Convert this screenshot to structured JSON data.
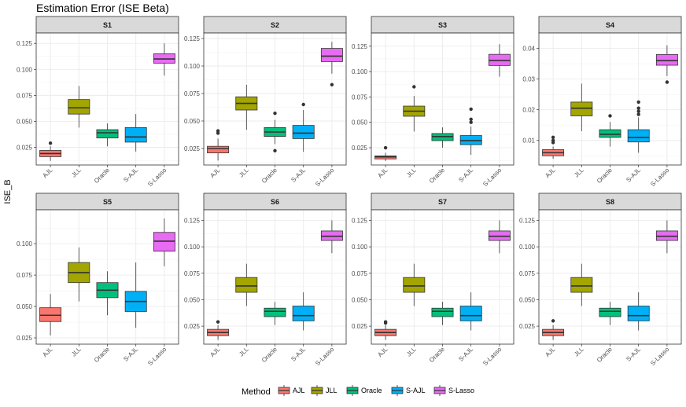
{
  "chart_data": {
    "type": "boxplot",
    "title": "Estimation Error (ISE Beta)",
    "ylabel": "ISE_B",
    "categories": [
      "AJL",
      "JLL",
      "Oracle",
      "S-AJL",
      "S-Lasso"
    ],
    "legend": {
      "title": "Method",
      "position": "bottom"
    },
    "colors": {
      "AJL": "#F8766D",
      "JLL": "#A3A500",
      "Oracle": "#00BF7D",
      "S-AJL": "#00B0F6",
      "S-Lasso": "#E76BF3"
    },
    "grid": true,
    "facets": [
      {
        "label": "S1",
        "ylim": [
          0.008,
          0.135
        ],
        "yticks": [
          0.025,
          0.05,
          0.075,
          0.1,
          0.125
        ],
        "boxes": [
          {
            "method": "AJL",
            "min": 0.012,
            "q1": 0.016,
            "median": 0.019,
            "q3": 0.022,
            "max": 0.026,
            "outliers": [
              0.029
            ]
          },
          {
            "method": "JLL",
            "min": 0.044,
            "q1": 0.057,
            "median": 0.063,
            "q3": 0.071,
            "max": 0.084,
            "outliers": []
          },
          {
            "method": "Oracle",
            "min": 0.026,
            "q1": 0.034,
            "median": 0.039,
            "q3": 0.042,
            "max": 0.048,
            "outliers": []
          },
          {
            "method": "S-AJL",
            "min": 0.021,
            "q1": 0.03,
            "median": 0.035,
            "q3": 0.044,
            "max": 0.057,
            "outliers": []
          },
          {
            "method": "S-Lasso",
            "min": 0.094,
            "q1": 0.106,
            "median": 0.11,
            "q3": 0.115,
            "max": 0.125,
            "outliers": []
          }
        ]
      },
      {
        "label": "S2",
        "ylim": [
          0.01,
          0.13
        ],
        "yticks": [
          0.025,
          0.05,
          0.075,
          0.1,
          0.125
        ],
        "boxes": [
          {
            "method": "AJL",
            "min": 0.014,
            "q1": 0.021,
            "median": 0.025,
            "q3": 0.027,
            "max": 0.034,
            "outliers": [
              0.039,
              0.041
            ]
          },
          {
            "method": "JLL",
            "min": 0.042,
            "q1": 0.06,
            "median": 0.066,
            "q3": 0.072,
            "max": 0.083,
            "outliers": []
          },
          {
            "method": "Oracle",
            "min": 0.029,
            "q1": 0.036,
            "median": 0.04,
            "q3": 0.044,
            "max": 0.051,
            "outliers": [
              0.057,
              0.023
            ]
          },
          {
            "method": "S-AJL",
            "min": 0.022,
            "q1": 0.034,
            "median": 0.039,
            "q3": 0.046,
            "max": 0.06,
            "outliers": [
              0.065
            ]
          },
          {
            "method": "S-Lasso",
            "min": 0.093,
            "q1": 0.104,
            "median": 0.109,
            "q3": 0.116,
            "max": 0.122,
            "outliers": [
              0.083
            ]
          }
        ]
      },
      {
        "label": "S3",
        "ylim": [
          0.008,
          0.138
        ],
        "yticks": [
          0.025,
          0.05,
          0.075,
          0.1,
          0.125
        ],
        "boxes": [
          {
            "method": "AJL",
            "min": 0.012,
            "q1": 0.014,
            "median": 0.016,
            "q3": 0.017,
            "max": 0.02,
            "outliers": [
              0.025
            ]
          },
          {
            "method": "JLL",
            "min": 0.041,
            "q1": 0.056,
            "median": 0.061,
            "q3": 0.066,
            "max": 0.076,
            "outliers": [
              0.085
            ]
          },
          {
            "method": "Oracle",
            "min": 0.025,
            "q1": 0.032,
            "median": 0.036,
            "q3": 0.039,
            "max": 0.045,
            "outliers": []
          },
          {
            "method": "S-AJL",
            "min": 0.018,
            "q1": 0.028,
            "median": 0.032,
            "q3": 0.037,
            "max": 0.046,
            "outliers": [
              0.05,
              0.053,
              0.063
            ]
          },
          {
            "method": "S-Lasso",
            "min": 0.095,
            "q1": 0.106,
            "median": 0.111,
            "q3": 0.117,
            "max": 0.127,
            "outliers": []
          }
        ]
      },
      {
        "label": "S4",
        "ylim": [
          0.002,
          0.045
        ],
        "yticks": [
          0.01,
          0.02,
          0.03,
          0.04
        ],
        "boxes": [
          {
            "method": "AJL",
            "min": 0.004,
            "q1": 0.005,
            "median": 0.006,
            "q3": 0.007,
            "max": 0.008,
            "outliers": [
              0.0093,
              0.01,
              0.011
            ]
          },
          {
            "method": "JLL",
            "min": 0.013,
            "q1": 0.018,
            "median": 0.0205,
            "q3": 0.0225,
            "max": 0.0285,
            "outliers": []
          },
          {
            "method": "Oracle",
            "min": 0.008,
            "q1": 0.011,
            "median": 0.012,
            "q3": 0.0135,
            "max": 0.016,
            "outliers": [
              0.018
            ]
          },
          {
            "method": "S-AJL",
            "min": 0.006,
            "q1": 0.0095,
            "median": 0.011,
            "q3": 0.0135,
            "max": 0.0175,
            "outliers": [
              0.0185,
              0.0195,
              0.0205,
              0.0225
            ]
          },
          {
            "method": "S-Lasso",
            "min": 0.031,
            "q1": 0.0345,
            "median": 0.036,
            "q3": 0.038,
            "max": 0.041,
            "outliers": [
              0.029
            ]
          }
        ]
      },
      {
        "label": "S5",
        "ylim": [
          0.02,
          0.127
        ],
        "yticks": [
          0.025,
          0.05,
          0.075,
          0.1
        ],
        "boxes": [
          {
            "method": "AJL",
            "min": 0.027,
            "q1": 0.038,
            "median": 0.043,
            "q3": 0.049,
            "max": 0.06,
            "outliers": []
          },
          {
            "method": "JLL",
            "min": 0.054,
            "q1": 0.069,
            "median": 0.077,
            "q3": 0.085,
            "max": 0.097,
            "outliers": []
          },
          {
            "method": "Oracle",
            "min": 0.043,
            "q1": 0.057,
            "median": 0.063,
            "q3": 0.069,
            "max": 0.078,
            "outliers": []
          },
          {
            "method": "S-AJL",
            "min": 0.033,
            "q1": 0.046,
            "median": 0.054,
            "q3": 0.062,
            "max": 0.085,
            "outliers": []
          },
          {
            "method": "S-Lasso",
            "min": 0.082,
            "q1": 0.094,
            "median": 0.102,
            "q3": 0.109,
            "max": 0.12,
            "outliers": []
          }
        ]
      },
      {
        "label": "S6",
        "ylim": [
          0.008,
          0.135
        ],
        "yticks": [
          0.025,
          0.05,
          0.075,
          0.1,
          0.125
        ],
        "boxes": [
          {
            "method": "AJL",
            "min": 0.012,
            "q1": 0.016,
            "median": 0.019,
            "q3": 0.022,
            "max": 0.026,
            "outliers": [
              0.029
            ]
          },
          {
            "method": "JLL",
            "min": 0.044,
            "q1": 0.057,
            "median": 0.063,
            "q3": 0.071,
            "max": 0.084,
            "outliers": []
          },
          {
            "method": "Oracle",
            "min": 0.026,
            "q1": 0.034,
            "median": 0.039,
            "q3": 0.042,
            "max": 0.048,
            "outliers": []
          },
          {
            "method": "S-AJL",
            "min": 0.021,
            "q1": 0.03,
            "median": 0.035,
            "q3": 0.044,
            "max": 0.057,
            "outliers": []
          },
          {
            "method": "S-Lasso",
            "min": 0.094,
            "q1": 0.106,
            "median": 0.11,
            "q3": 0.115,
            "max": 0.125,
            "outliers": []
          }
        ]
      },
      {
        "label": "S7",
        "ylim": [
          0.008,
          0.135
        ],
        "yticks": [
          0.025,
          0.05,
          0.075,
          0.1,
          0.125
        ],
        "boxes": [
          {
            "method": "AJL",
            "min": 0.012,
            "q1": 0.016,
            "median": 0.019,
            "q3": 0.022,
            "max": 0.026,
            "outliers": [
              0.028,
              0.029
            ]
          },
          {
            "method": "JLL",
            "min": 0.044,
            "q1": 0.057,
            "median": 0.063,
            "q3": 0.071,
            "max": 0.084,
            "outliers": []
          },
          {
            "method": "Oracle",
            "min": 0.026,
            "q1": 0.034,
            "median": 0.039,
            "q3": 0.042,
            "max": 0.048,
            "outliers": []
          },
          {
            "method": "S-AJL",
            "min": 0.021,
            "q1": 0.03,
            "median": 0.035,
            "q3": 0.044,
            "max": 0.057,
            "outliers": []
          },
          {
            "method": "S-Lasso",
            "min": 0.094,
            "q1": 0.106,
            "median": 0.11,
            "q3": 0.115,
            "max": 0.125,
            "outliers": []
          }
        ]
      },
      {
        "label": "S8",
        "ylim": [
          0.008,
          0.135
        ],
        "yticks": [
          0.025,
          0.05,
          0.075,
          0.1,
          0.125
        ],
        "boxes": [
          {
            "method": "AJL",
            "min": 0.012,
            "q1": 0.016,
            "median": 0.019,
            "q3": 0.022,
            "max": 0.026,
            "outliers": [
              0.03
            ]
          },
          {
            "method": "JLL",
            "min": 0.044,
            "q1": 0.057,
            "median": 0.063,
            "q3": 0.071,
            "max": 0.084,
            "outliers": []
          },
          {
            "method": "Oracle",
            "min": 0.026,
            "q1": 0.034,
            "median": 0.039,
            "q3": 0.042,
            "max": 0.048,
            "outliers": []
          },
          {
            "method": "S-AJL",
            "min": 0.021,
            "q1": 0.03,
            "median": 0.035,
            "q3": 0.044,
            "max": 0.057,
            "outliers": []
          },
          {
            "method": "S-Lasso",
            "min": 0.094,
            "q1": 0.106,
            "median": 0.11,
            "q3": 0.115,
            "max": 0.125,
            "outliers": []
          }
        ]
      }
    ]
  }
}
